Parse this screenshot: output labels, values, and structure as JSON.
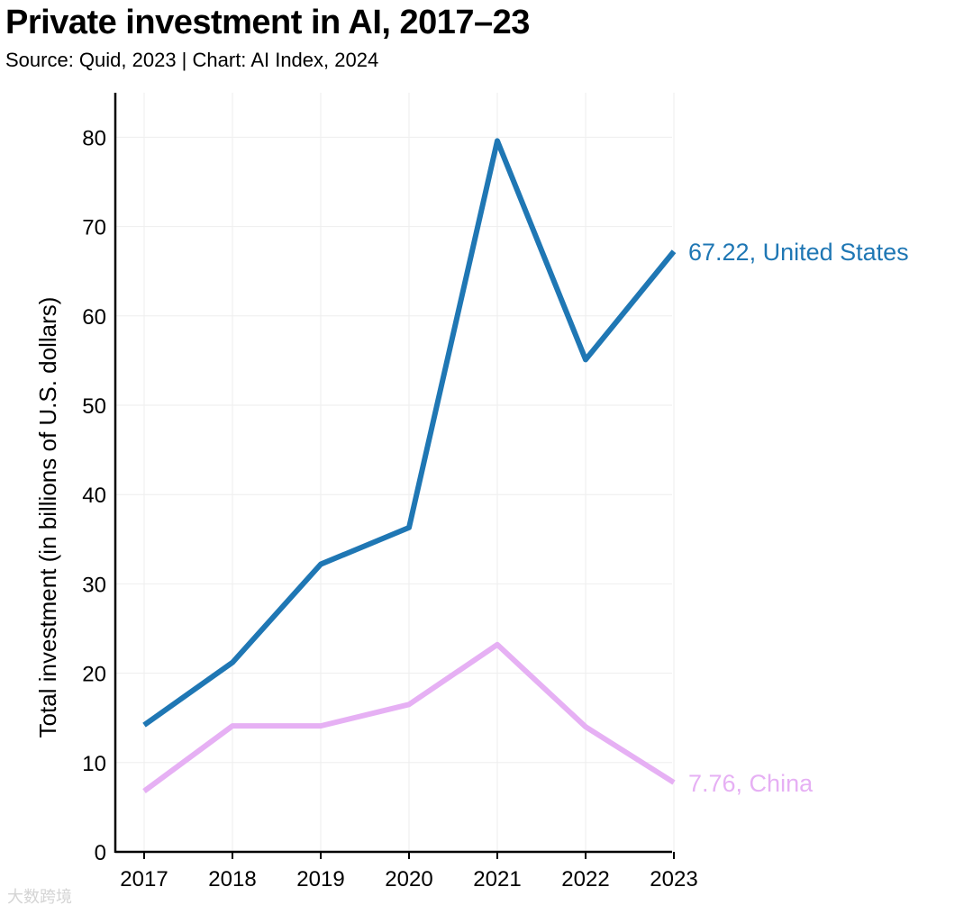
{
  "header": {
    "title": "Private investment in AI, 2017–23",
    "subtitle": "Source: Quid, 2023 | Chart: AI Index, 2024"
  },
  "watermark": {
    "text": "大数跨境"
  },
  "chart_data": {
    "type": "line",
    "title": "Private investment in AI, 2017–23",
    "subtitle": "Source: Quid, 2023 | Chart: AI Index, 2024",
    "xlabel": "",
    "ylabel": "Total investment (in billions of U.S. dollars)",
    "x": [
      "2017",
      "2018",
      "2019",
      "2020",
      "2021",
      "2022",
      "2023"
    ],
    "ylim": [
      0,
      85
    ],
    "yticks": [
      0,
      10,
      20,
      30,
      40,
      50,
      60,
      70,
      80
    ],
    "grid": true,
    "series": [
      {
        "name": "United States",
        "values": [
          14.2,
          21.2,
          32.2,
          36.3,
          79.6,
          55.1,
          67.22
        ],
        "color": "#1f77b4",
        "end_label": "67.22, United States"
      },
      {
        "name": "China",
        "values": [
          6.8,
          14.1,
          14.1,
          16.5,
          23.2,
          14.0,
          7.76
        ],
        "color": "#e6b0f4",
        "end_label": "7.76, China"
      }
    ]
  }
}
